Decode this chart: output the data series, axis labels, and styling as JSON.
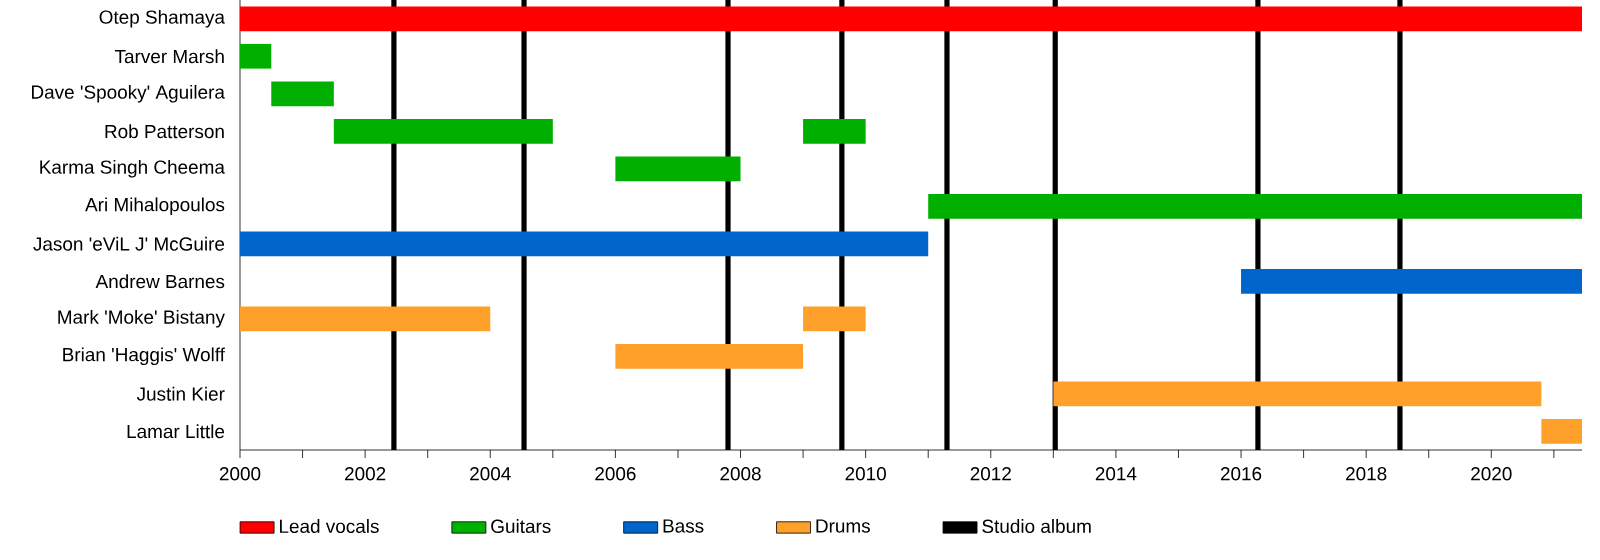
{
  "chart_data": {
    "type": "bar",
    "orientation": "horizontal",
    "legend": "bottom",
    "categories": [
      "Otep Shamaya",
      "Tarver Marsh",
      "Dave 'Spooky' Aguilera",
      "Rob Patterson",
      "Karma Singh Cheema",
      "Ari Mihalopoulos",
      "Jason 'eViL J' McGuire",
      "Andrew Barnes",
      "Mark 'Moke' Bistany",
      "Brian 'Haggis' Wolff",
      "Justin Kier",
      "Lamar Little"
    ],
    "series": [
      {
        "name": "Lead vocals",
        "color": "#ff0000",
        "base": [
          2000,
          null,
          null,
          null,
          null,
          null,
          null,
          null,
          null,
          null,
          null,
          null
        ],
        "values": [
          21.45,
          null,
          null,
          null,
          null,
          null,
          null,
          null,
          null,
          null,
          null,
          null
        ]
      },
      {
        "name": "Guitars",
        "color": "#00b000",
        "base": [
          null,
          2000,
          2000.5,
          2001.5,
          2006,
          2011,
          null,
          null,
          null,
          null,
          null,
          null
        ],
        "values": [
          null,
          0.5,
          1,
          3.5,
          2,
          10.45,
          null,
          null,
          null,
          null,
          null,
          null
        ]
      },
      {
        "color": "#00b000",
        "base": [
          null,
          null,
          null,
          2009,
          null,
          null,
          null,
          null,
          null,
          null,
          null,
          null
        ],
        "values": [
          null,
          null,
          null,
          1,
          null,
          null,
          null,
          null,
          null,
          null,
          null,
          null
        ]
      },
      {
        "name": "Bass",
        "color": "#0066cc",
        "base": [
          null,
          null,
          null,
          null,
          null,
          null,
          2000,
          2016,
          null,
          null,
          null,
          null
        ],
        "values": [
          null,
          null,
          null,
          null,
          null,
          null,
          11,
          5.45,
          null,
          null,
          null,
          null
        ]
      },
      {
        "name": "Drums",
        "color": "#ffa02a",
        "base": [
          null,
          null,
          null,
          null,
          null,
          null,
          null,
          null,
          2000,
          2006,
          2013,
          2020.8
        ],
        "values": [
          null,
          null,
          null,
          null,
          null,
          null,
          null,
          null,
          4,
          3,
          7.8,
          0.65
        ]
      },
      {
        "color": "#ffa02a",
        "base": [
          null,
          null,
          null,
          null,
          null,
          null,
          null,
          null,
          2009,
          null,
          null,
          null
        ],
        "values": [
          null,
          null,
          null,
          null,
          null,
          null,
          null,
          null,
          1,
          null,
          null,
          null
        ]
      }
    ],
    "xlim": [
      2000,
      2021.45
    ],
    "xticks": [
      2000,
      {
        "value": 2001,
        "label": null
      },
      2002,
      {
        "value": 2003,
        "label": null
      },
      2004,
      {
        "value": 2005,
        "label": null
      },
      2006,
      {
        "value": 2007,
        "label": null
      },
      2008,
      {
        "value": 2009,
        "label": null
      },
      2010,
      {
        "value": 2011,
        "label": null
      },
      2012,
      {
        "value": 2013,
        "label": null
      },
      2014,
      {
        "value": 2015,
        "label": null
      },
      2016,
      {
        "value": 2017,
        "label": null
      },
      2018,
      {
        "value": 2019,
        "label": null
      },
      2020,
      {
        "value": 2021,
        "label": null
      }
    ],
    "ref_lines": [
      {
        "axis": "x",
        "value": 2002.46,
        "color": "#000000",
        "label": "Studio album"
      },
      {
        "axis": "x",
        "value": 2004.54,
        "color": "#000000"
      },
      {
        "axis": "x",
        "value": 2007.8,
        "color": "#000000"
      },
      {
        "axis": "x",
        "value": 2009.62,
        "color": "#000000"
      },
      {
        "axis": "x",
        "value": 2011.3,
        "color": "#000000"
      },
      {
        "axis": "x",
        "value": 2013.03,
        "color": "#000000"
      },
      {
        "axis": "x",
        "value": 2016.27,
        "color": "#000000"
      },
      {
        "axis": "x",
        "value": 2018.54,
        "color": "#000000"
      }
    ]
  }
}
